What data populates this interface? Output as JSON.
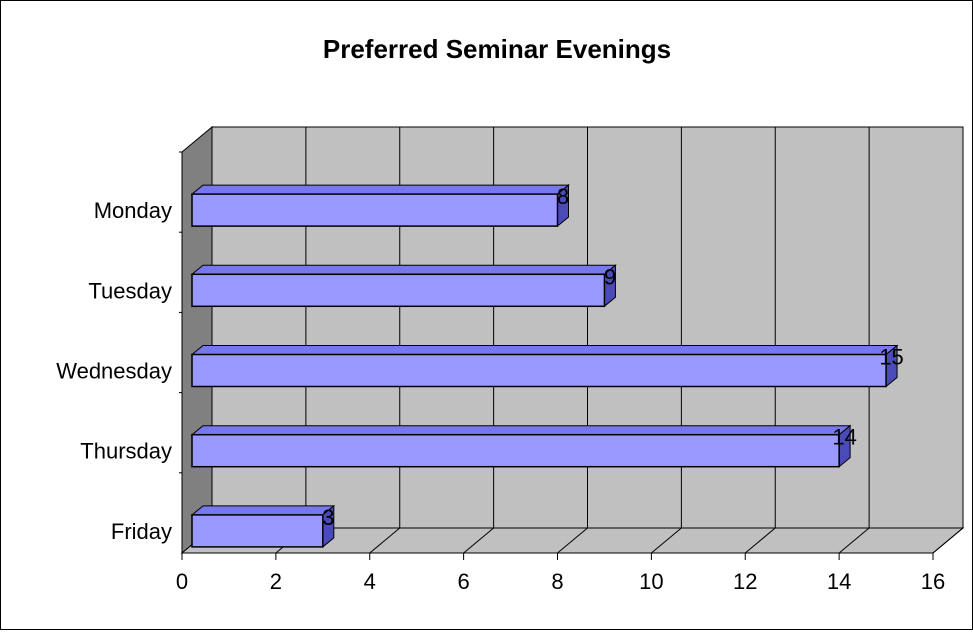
{
  "chart_data": {
    "type": "bar",
    "orientation": "horizontal",
    "style": "3d",
    "title": "Preferred Seminar Evenings",
    "xlabel": "",
    "ylabel": "",
    "categories": [
      "Monday",
      "Tuesday",
      "Wednesday",
      "Thursday",
      "Friday"
    ],
    "values": [
      8,
      9,
      15,
      14,
      3
    ],
    "xlim": [
      0,
      16
    ],
    "xticks": [
      0,
      2,
      4,
      6,
      8,
      10,
      12,
      14,
      16
    ],
    "data_labels": true,
    "grid": true,
    "legend": "none",
    "colors": {
      "bar_front": "#9999ff",
      "bar_top": "#7777ee",
      "bar_side": "#4a4ab8",
      "wall": "#c0c0c0",
      "side_wall": "#808080",
      "floor": "#c0c0c0",
      "gridline": "#000000"
    }
  }
}
